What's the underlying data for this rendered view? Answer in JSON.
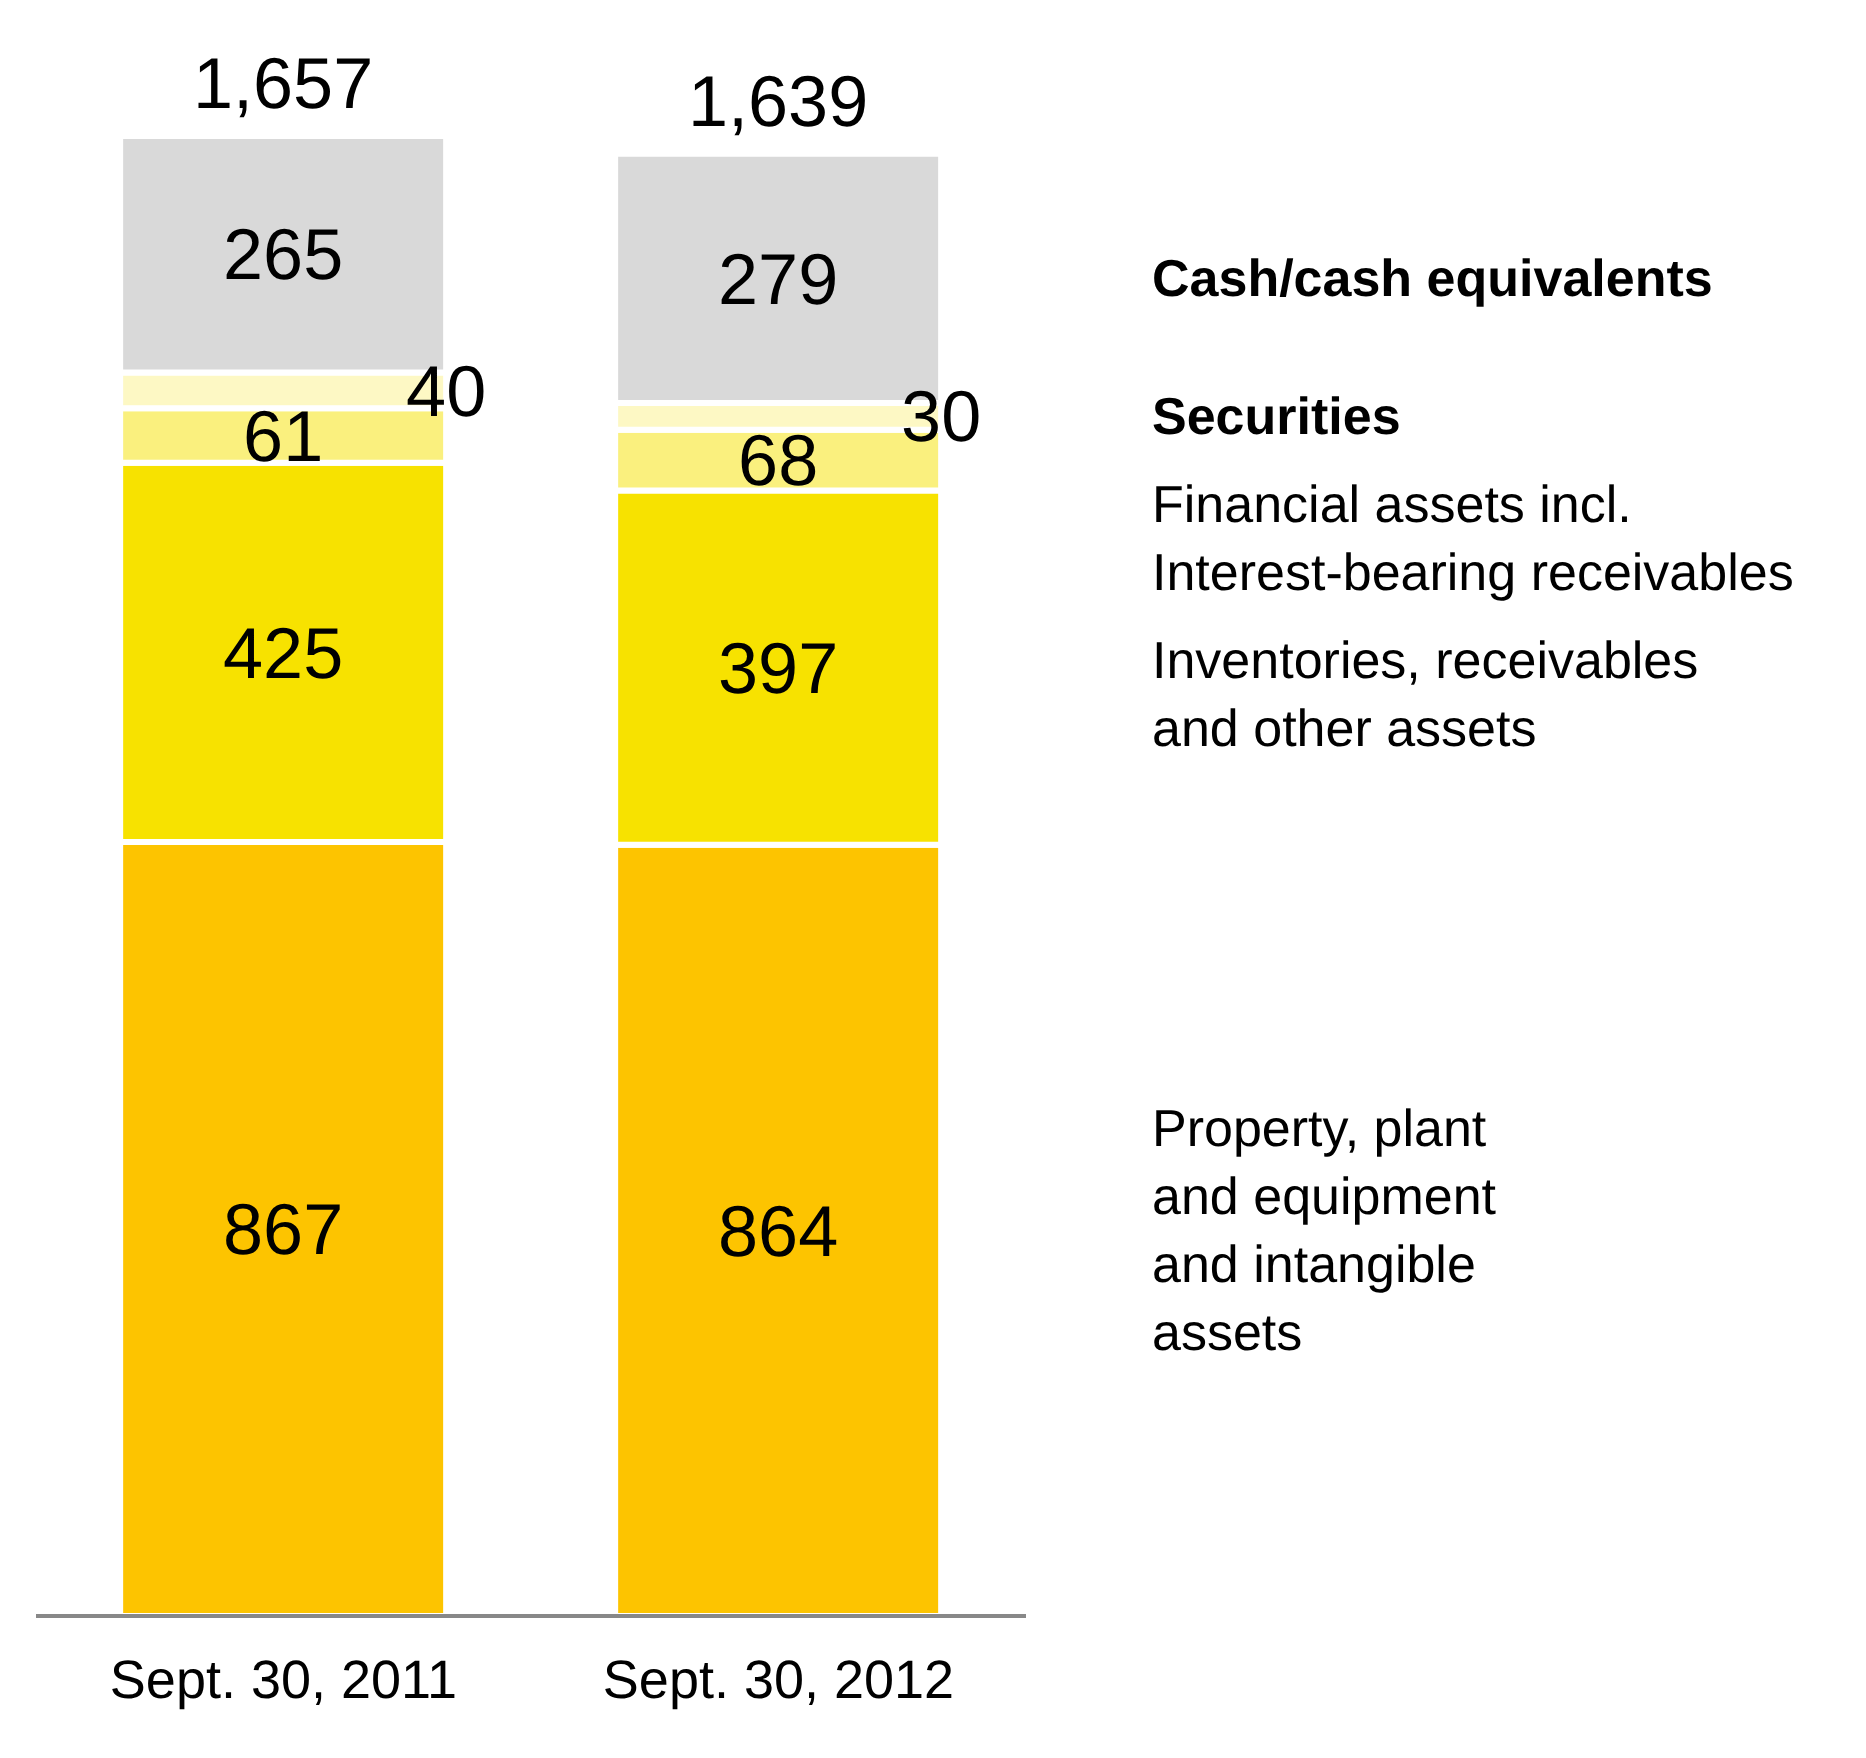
{
  "chart_data": {
    "type": "bar",
    "stacked": true,
    "categories": [
      "Sept. 30, 2011",
      "Sept. 30, 2012"
    ],
    "series": [
      {
        "name": "Property, plant\nand equipment\nand intangible\nassets",
        "color": "#fdc400",
        "values": [
          867,
          864
        ]
      },
      {
        "name": "Inventories, receivables\nand other assets",
        "color": "#f7e200",
        "values": [
          425,
          397
        ]
      },
      {
        "name": "Financial assets incl.\nInterest-bearing receivables",
        "color": "#faf07e",
        "values": [
          61,
          68
        ]
      },
      {
        "name": "Securities",
        "color": "#fdf8c4",
        "values": [
          40,
          30
        ]
      },
      {
        "name": "Cash/cash equivalents",
        "color": "#d9d9d9",
        "values": [
          265,
          279
        ]
      }
    ],
    "data_labels": true,
    "totals": [
      "1,657",
      "1,639"
    ],
    "legend": "right",
    "tick_labels": "x",
    "grid": false
  }
}
